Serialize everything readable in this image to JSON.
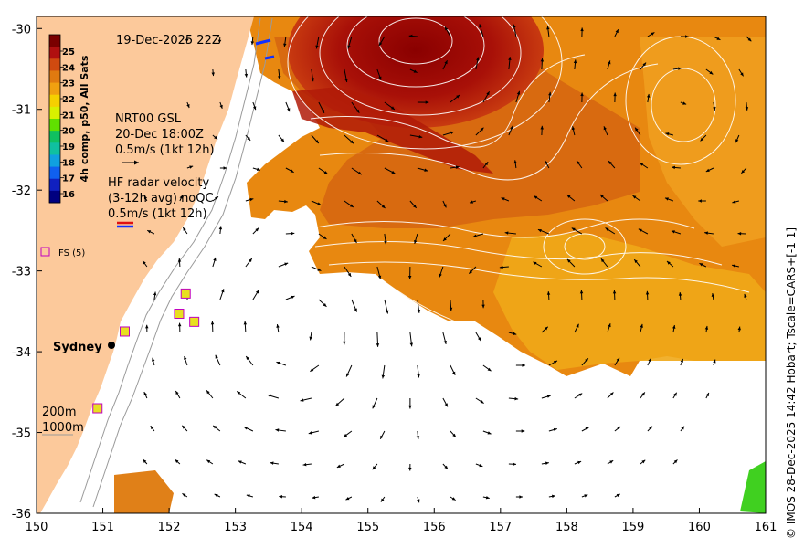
{
  "map": {
    "date_label": "19-Dec-2025 22Z",
    "x_ticks": [
      150,
      151,
      152,
      153,
      154,
      155,
      156,
      157,
      158,
      159,
      160,
      161
    ],
    "y_ticks": [
      -30,
      -31,
      -32,
      -33,
      -34,
      -35,
      -36
    ],
    "x_range": [
      150,
      161
    ],
    "y_range": [
      -36,
      -29.85
    ]
  },
  "colorbar": {
    "title": "4h comp, p50, All Sats",
    "ticks": [
      "25",
      "24",
      "23",
      "22",
      "21",
      "20",
      "19",
      "18",
      "17",
      "16"
    ],
    "colors": [
      "#7a0000",
      "#b01010",
      "#d04a10",
      "#e07a10",
      "#f0a010",
      "#f5d000",
      "#d8f000",
      "#60e000",
      "#10c060",
      "#10c0a0",
      "#10a0e0",
      "#1060f0",
      "#1020c0",
      "#000080"
    ]
  },
  "legend": {
    "model_lines": [
      "NRT00 GSL",
      "20-Dec 18:00Z",
      "0.5m/s (1kt 12h)"
    ],
    "radar_lines": [
      "HF radar velocity",
      "(3-12h avg) noQC",
      "0.5m/s (1kt 12h)"
    ],
    "fs_label": "FS (5)",
    "city": "Sydney",
    "depth_200": "200m",
    "depth_1000": "1000m"
  },
  "stations": [
    {
      "lon": 152.25,
      "lat": -33.28
    },
    {
      "lon": 152.15,
      "lat": -33.53
    },
    {
      "lon": 152.38,
      "lat": -33.63
    },
    {
      "lon": 151.33,
      "lat": -33.75
    },
    {
      "lon": 150.92,
      "lat": -34.7
    }
  ],
  "credit": "© IMOS 28-Dec-2025 14:42 Hobart; Tscale=CARS+[-1 1]"
}
